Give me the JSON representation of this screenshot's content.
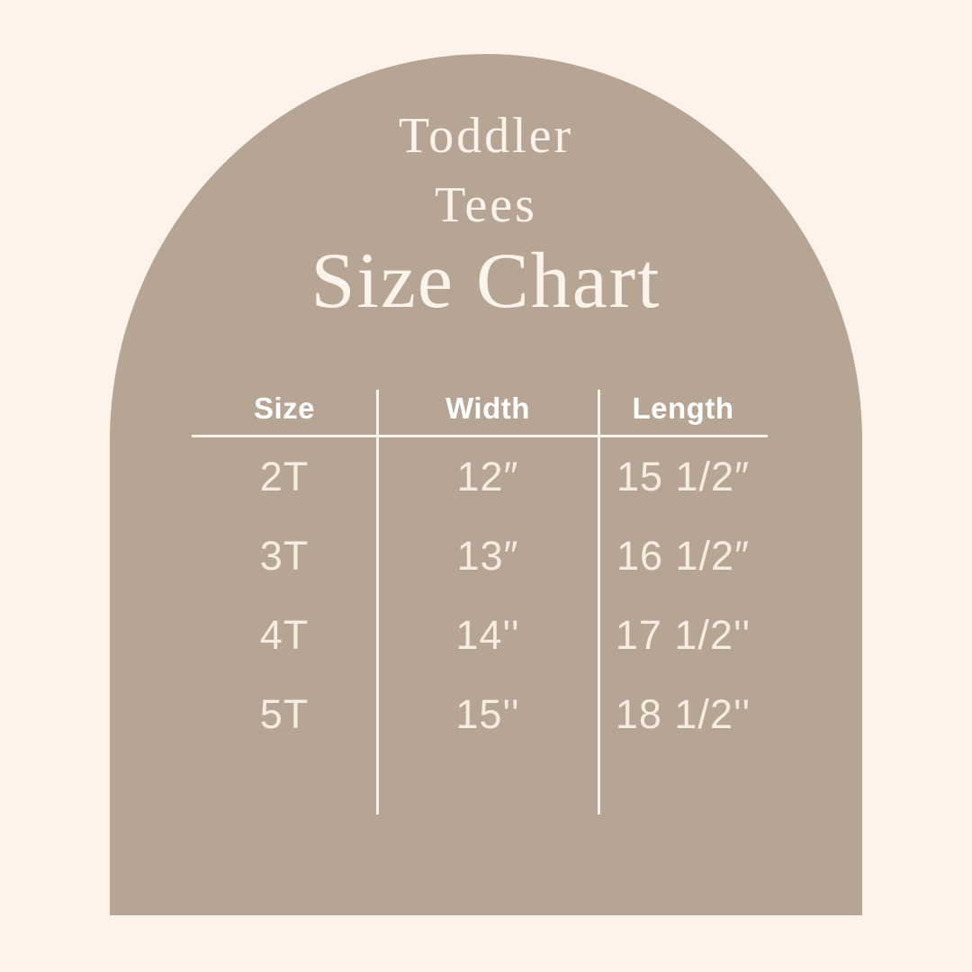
{
  "colors": {
    "background": "#fdf3ea",
    "arch": "#b6a595",
    "title_text": "#fcf4ea",
    "header_text": "#ffffff",
    "data_text": "#f5ece2",
    "line": "#fbf4ec"
  },
  "title": {
    "line1": "Toddler",
    "line2": "Tees",
    "heading": "Size Chart"
  },
  "table": {
    "headers": [
      "Size",
      "Width",
      "Length"
    ],
    "rows": [
      [
        "2T",
        "12″",
        "15 1/2″"
      ],
      [
        "3T",
        "13″",
        "16 1/2″"
      ],
      [
        "4T",
        "14''",
        "17 1/2''"
      ],
      [
        "5T",
        "15''",
        "18 1/2''"
      ]
    ]
  }
}
